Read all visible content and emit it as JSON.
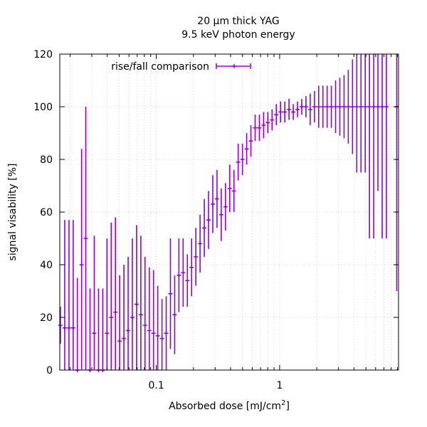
{
  "chart_data": {
    "type": "scatter",
    "title_lines": [
      "20 µm thick YAG",
      "9.5 keV photon energy"
    ],
    "xlabel_main": "Absorbed dose [mJ/cm",
    "xlabel_sup": "2",
    "xlabel_end": "]",
    "ylabel": "signal visability [%]",
    "xscale": "log",
    "xlim": [
      0.0165,
      9.2
    ],
    "ylim": [
      0,
      120
    ],
    "x_major_ticks": [
      0.1,
      1
    ],
    "x_tick_labels": [
      "0.1",
      "1"
    ],
    "y_ticks": [
      0,
      20,
      40,
      60,
      80,
      100,
      120
    ],
    "y_tick_labels": [
      "0",
      "20",
      "40",
      "60",
      "80",
      "100",
      "120"
    ],
    "grid": true,
    "legend_position": "top-left",
    "series": [
      {
        "name": "rise/fall comparison",
        "color": "#9400d3",
        "x": [
          0.0167,
          0.0181,
          0.0196,
          0.0212,
          0.0229,
          0.0248,
          0.0268,
          0.029,
          0.0314,
          0.034,
          0.0368,
          0.0398,
          0.0431,
          0.0466,
          0.0504,
          0.0546,
          0.0591,
          0.0639,
          0.0692,
          0.0749,
          0.081,
          0.0877,
          0.0949,
          0.1027,
          0.1112,
          0.1203,
          0.1302,
          0.1409,
          0.1525,
          0.165,
          0.1786,
          0.1933,
          0.2092,
          0.2264,
          0.245,
          0.2652,
          0.287,
          0.3106,
          0.3362,
          0.3638,
          0.3937,
          0.4261,
          0.4611,
          0.4991,
          0.5401,
          0.5846,
          0.6326,
          0.6847,
          0.741,
          0.8019,
          0.8679,
          0.9393,
          1.0166,
          1.1002,
          1.1907,
          1.2887,
          1.3947,
          1.5094,
          1.6336,
          1.768,
          1.9134,
          2.0708,
          2.2412,
          2.4256,
          2.6251,
          2.8411,
          3.0748,
          3.3278,
          3.6015,
          3.8978,
          4.2185,
          4.5655,
          4.9411,
          5.3476,
          5.7875,
          6.2637,
          6.779,
          7.3366,
          8.9
        ],
        "y": [
          17,
          16,
          16,
          16,
          0,
          40,
          50,
          0,
          14,
          0,
          0,
          14,
          20,
          22,
          11,
          12,
          15,
          20,
          25,
          21,
          17,
          15,
          14,
          13,
          12,
          14,
          29,
          21,
          36,
          37,
          34,
          39,
          43,
          48,
          54,
          57,
          63,
          65,
          59,
          62,
          69,
          68,
          79,
          80,
          84,
          87,
          92,
          92,
          93,
          94,
          95,
          97,
          98,
          98,
          99,
          98,
          99,
          100,
          100,
          99,
          100,
          100,
          100,
          100,
          100,
          100,
          100,
          100,
          100,
          100,
          100,
          100,
          100,
          100,
          100,
          100,
          100,
          100,
          100
        ],
        "error": [
          7,
          41,
          41,
          41,
          35,
          44,
          50,
          31,
          37,
          31,
          31,
          36,
          36,
          36,
          25,
          28,
          28,
          30,
          30,
          30,
          26,
          24,
          24,
          19,
          15,
          14,
          21,
          15,
          14,
          13,
          10,
          11,
          11,
          11,
          11,
          11,
          11,
          11,
          10,
          9,
          9,
          8,
          7,
          6,
          6,
          6,
          5,
          5,
          5,
          4,
          4,
          4,
          4,
          4,
          4,
          3,
          3,
          3,
          4,
          6,
          6,
          8,
          8,
          8,
          8,
          10,
          11,
          12,
          14,
          18,
          25,
          25,
          25,
          50,
          50,
          32,
          50,
          50,
          70
        ]
      }
    ]
  }
}
